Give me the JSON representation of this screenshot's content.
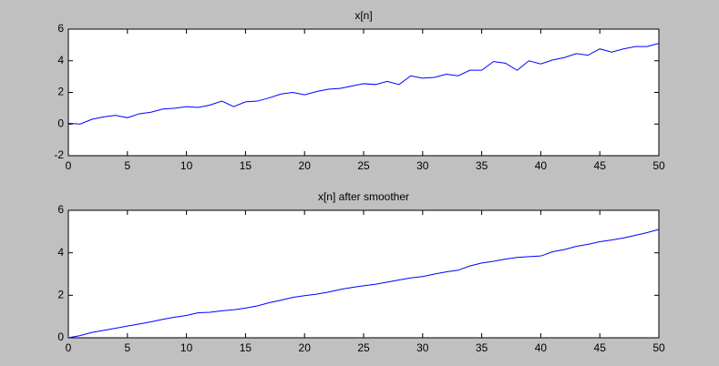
{
  "chart_data": [
    {
      "type": "line",
      "title": "x[n]",
      "color": "#0000ff",
      "x": [
        0,
        1,
        2,
        3,
        4,
        5,
        6,
        7,
        8,
        9,
        10,
        11,
        12,
        13,
        14,
        15,
        16,
        17,
        18,
        19,
        20,
        21,
        22,
        23,
        24,
        25,
        26,
        27,
        28,
        29,
        30,
        31,
        32,
        33,
        34,
        35,
        36,
        37,
        38,
        39,
        40,
        41,
        42,
        43,
        44,
        45,
        46,
        47,
        48,
        49,
        50
      ],
      "values": [
        0.05,
        0.0,
        0.3,
        0.45,
        0.55,
        0.4,
        0.65,
        0.75,
        0.95,
        1.0,
        1.1,
        1.05,
        1.2,
        1.45,
        1.1,
        1.4,
        1.45,
        1.65,
        1.9,
        2.0,
        1.85,
        2.05,
        2.2,
        2.25,
        2.4,
        2.55,
        2.5,
        2.7,
        2.5,
        3.05,
        2.9,
        2.95,
        3.15,
        3.05,
        3.4,
        3.4,
        3.95,
        3.85,
        3.4,
        4.0,
        3.8,
        4.05,
        4.2,
        4.45,
        4.35,
        4.75,
        4.55,
        4.75,
        4.9,
        4.9,
        5.1
      ],
      "xlim": [
        0,
        50
      ],
      "xticks": [
        0,
        5,
        10,
        15,
        20,
        25,
        30,
        35,
        40,
        45,
        50
      ],
      "ylim": [
        -2,
        6
      ],
      "yticks": [
        -2,
        0,
        2,
        4,
        6
      ]
    },
    {
      "type": "line",
      "title": "x[n] after smoother",
      "color": "#0000ff",
      "x": [
        0,
        1,
        2,
        3,
        4,
        5,
        6,
        7,
        8,
        9,
        10,
        11,
        12,
        13,
        14,
        15,
        16,
        17,
        18,
        19,
        20,
        21,
        22,
        23,
        24,
        25,
        26,
        27,
        28,
        29,
        30,
        31,
        32,
        33,
        34,
        35,
        36,
        37,
        38,
        39,
        40,
        41,
        42,
        43,
        44,
        45,
        46,
        47,
        48,
        49,
        50
      ],
      "values": [
        0.0,
        0.1,
        0.25,
        0.35,
        0.45,
        0.55,
        0.65,
        0.75,
        0.87,
        0.97,
        1.05,
        1.18,
        1.2,
        1.27,
        1.32,
        1.4,
        1.5,
        1.65,
        1.77,
        1.9,
        1.98,
        2.05,
        2.15,
        2.27,
        2.37,
        2.45,
        2.52,
        2.62,
        2.72,
        2.82,
        2.88,
        3.0,
        3.1,
        3.18,
        3.38,
        3.52,
        3.6,
        3.7,
        3.78,
        3.82,
        3.85,
        4.05,
        4.15,
        4.3,
        4.4,
        4.52,
        4.6,
        4.7,
        4.82,
        4.95,
        5.1
      ],
      "xlim": [
        0,
        50
      ],
      "xticks": [
        0,
        5,
        10,
        15,
        20,
        25,
        30,
        35,
        40,
        45,
        50
      ],
      "ylim": [
        0,
        6
      ],
      "yticks": [
        0,
        2,
        4,
        6
      ]
    }
  ]
}
